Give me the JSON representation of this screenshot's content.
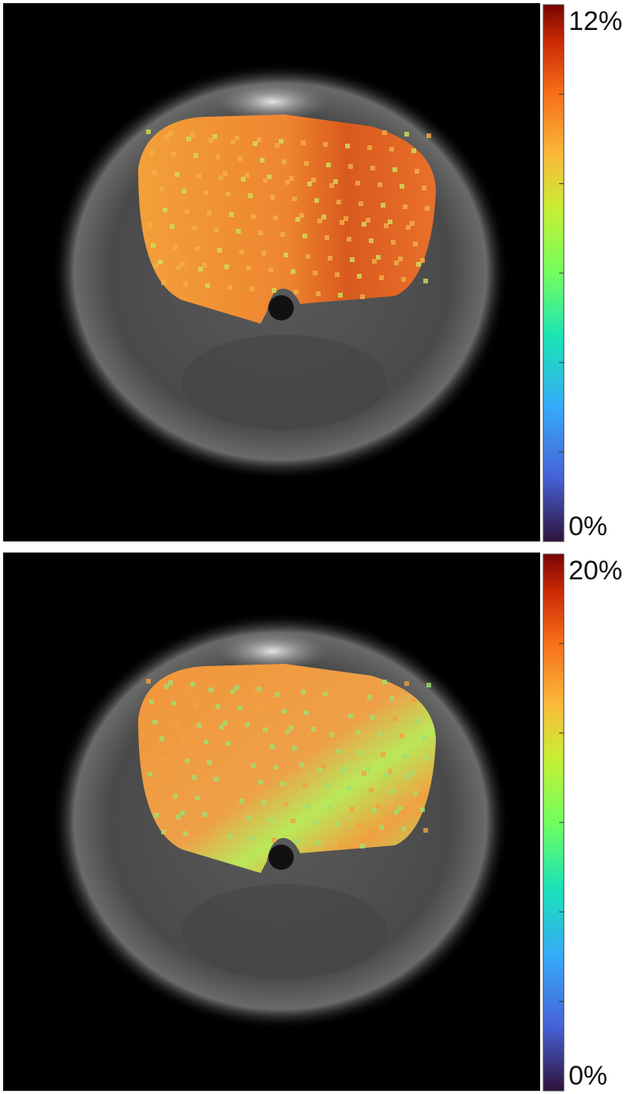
{
  "panels": [
    {
      "colorbar": {
        "max_label": "12%",
        "min_label": "0%"
      }
    },
    {
      "colorbar": {
        "max_label": "20%",
        "min_label": "0%"
      }
    }
  ]
}
